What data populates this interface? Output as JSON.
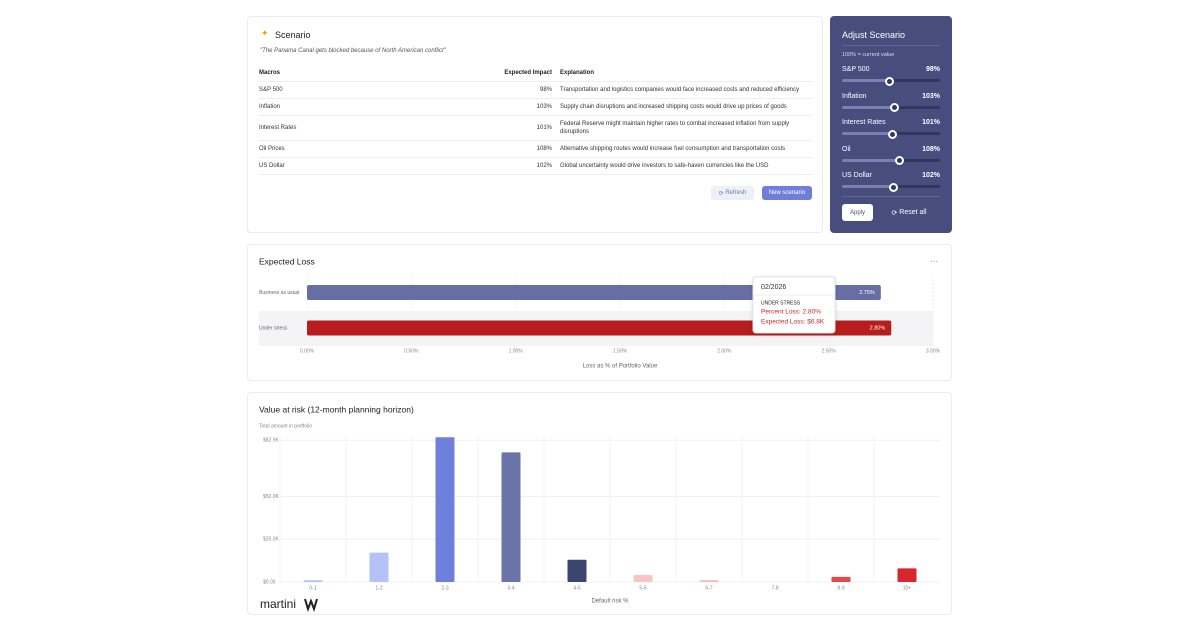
{
  "scenario": {
    "title": "Scenario",
    "quote": "\"The Panama Canal gets blocked because of North American conflict\"",
    "table": {
      "header": [
        "Macros",
        "Expected Impact",
        "Explanation"
      ],
      "rows": [
        [
          "S&P 500",
          "98%",
          "Transportation and logistics companies would face increased costs and reduced efficiency"
        ],
        [
          "Inflation",
          "103%",
          "Supply chain disruptions and increased shipping costs would drive up prices of goods"
        ],
        [
          "Interest Rates",
          "101%",
          "Federal Reserve might maintain higher rates to combat increased inflation from supply disruptions"
        ],
        [
          "Oil Prices",
          "108%",
          "Alternative shipping routes would increase fuel consumption and transportation costs"
        ],
        [
          "US Dollar",
          "102%",
          "Global uncertainty would drive investors to safe-haven currencies like the USD"
        ]
      ]
    },
    "buttons": [
      "Refresh",
      "New scenario"
    ]
  },
  "adjust": {
    "title": "Adjust Scenario",
    "note": "100% = current value",
    "slider_range": [
      50,
      150
    ],
    "sliders": [
      {
        "name": "S&P 500",
        "value": 98,
        "label": "98%"
      },
      {
        "name": "Inflation",
        "value": 103,
        "label": "103%"
      },
      {
        "name": "Interest Rates",
        "value": 101,
        "label": "101%"
      },
      {
        "name": "Oil",
        "value": 108,
        "label": "108%"
      },
      {
        "name": "US Dollar",
        "value": 102,
        "label": "102%"
      }
    ],
    "buttons": [
      "Apply",
      "Reset all"
    ]
  },
  "chart_data": [
    {
      "type": "bar",
      "orientation": "horizontal",
      "title": "Expected Loss",
      "categories": [
        "Business as usual",
        "Under stress"
      ],
      "values": [
        2.75,
        2.8
      ],
      "value_labels": [
        "2.75%",
        "2.80%"
      ],
      "colors": [
        "#676ea6",
        "#b91c1c"
      ],
      "xlim": [
        0,
        3
      ],
      "xticks": [
        {
          "value": 0,
          "label": "0.00%"
        },
        {
          "value": 0.5,
          "label": "0.50%"
        },
        {
          "value": 1,
          "label": "1.00%"
        },
        {
          "value": 1.5,
          "label": "1.50%"
        },
        {
          "value": 2,
          "label": "2.00%"
        },
        {
          "value": 2.5,
          "label": "2.50%"
        },
        {
          "value": 3,
          "label": "3.00%"
        }
      ],
      "xlabel": "Loss as % of Portfolio Value",
      "grid": true,
      "tooltip": {
        "title": "02/2026",
        "series": "UNDER STRESS",
        "lines": [
          "Percent Loss: 2.80%",
          "Expected Loss: $6.8K"
        ]
      }
    },
    {
      "type": "bar",
      "orientation": "vertical",
      "title": "Value at risk (12-month planning horizon)",
      "subtitle": "Total amount in portfolio",
      "categories": [
        "0-1",
        "1-2",
        "2-3",
        "3-4",
        "4-5",
        "5-6",
        "6-7",
        "7-8",
        "8-9",
        "10+"
      ],
      "values": [
        1000,
        17200,
        84700,
        75800,
        13000,
        4200,
        1000,
        0,
        3000,
        8000
      ],
      "colors": [
        "#b6c2f5",
        "#b6c2f5",
        "#6f80dc",
        "#6a74a8",
        "#3b4570",
        "#f8c4c4",
        "#f4b8b8",
        "#f4b8b8",
        "#e04a4a",
        "#d8262f"
      ],
      "ylim": [
        0,
        86000
      ],
      "yticks": [
        {
          "value": 0,
          "label": "$0.00"
        },
        {
          "value": 25000,
          "label": "$25.0K"
        },
        {
          "value": 50000,
          "label": "$50.0K"
        },
        {
          "value": 82900,
          "label": "$82.9K"
        }
      ],
      "xlabel": "Default risk %",
      "grid": true
    }
  ],
  "logo": "martini"
}
